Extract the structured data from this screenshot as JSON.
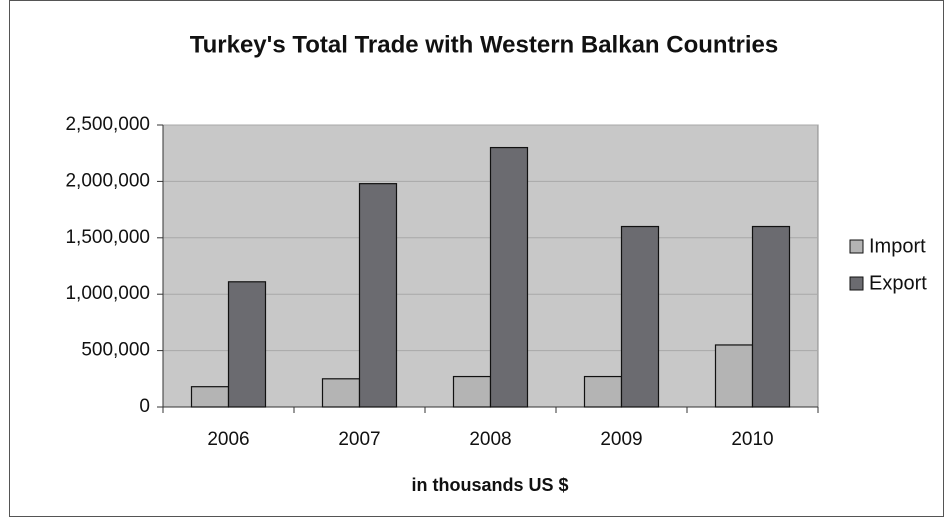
{
  "chart_data": {
    "type": "bar",
    "title": "Turkey's Total Trade with Western Balkan Countries",
    "x_label": "in thousands US $",
    "categories": [
      "2006",
      "2007",
      "2008",
      "2009",
      "2010"
    ],
    "series": [
      {
        "name": "Import",
        "color": "#b4b4b4",
        "values": [
          180000,
          250000,
          270000,
          270000,
          550000
        ]
      },
      {
        "name": "Export",
        "color": "#6b6b70",
        "values": [
          1110000,
          1980000,
          2300000,
          1600000,
          1600000
        ]
      }
    ],
    "ylim": [
      0,
      2500000
    ],
    "yticks": [
      0,
      {
        "value": 500000,
        "label": "500,000"
      },
      {
        "value": 1000000,
        "label": "1,000,000"
      },
      {
        "value": 1500000,
        "label": "1,500,000"
      },
      {
        "value": 2000000,
        "label": "2,000,000"
      },
      {
        "value": 2500000,
        "label": "2,500,000"
      }
    ],
    "grid": true,
    "legend": "right"
  }
}
